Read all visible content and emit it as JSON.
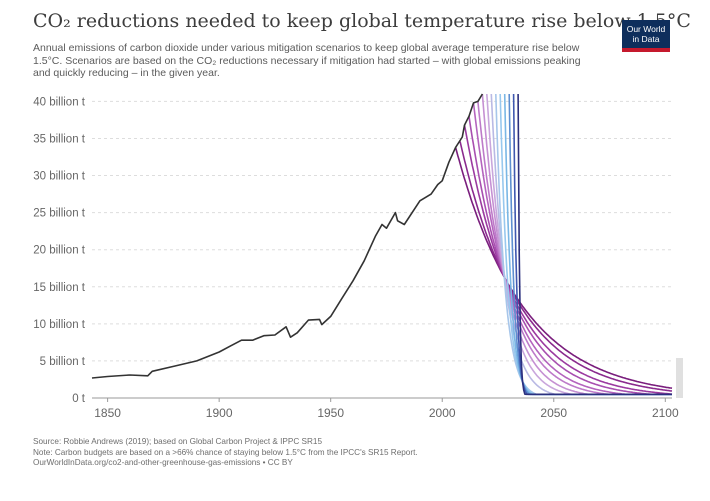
{
  "header": {
    "title": "CO₂ reductions needed to keep global temperature rise below 1.5°C",
    "subtitle": "Annual emissions of carbon dioxide under various mitigation scenarios to keep global average temperature rise below 1.5°C. Scenarios are based on the CO₂ reductions necessary if mitigation had started – with global emissions peaking and quickly reducing – in the given year."
  },
  "logo": {
    "line1": "Our World",
    "line2": "in Data",
    "bg_color": "#0e2e5c",
    "accent_color": "#c5192d"
  },
  "footer": {
    "source": "Source: Robbie Andrews (2019); based on Global Carbon Project & IPPC SR15",
    "note": "Note: Carbon budgets are based on a >66% chance of staying below 1.5°C from the IPCC's SR15 Report.",
    "url": "OurWorldInData.org/co2-and-other-greenhouse-gas-emissions • CC BY"
  },
  "chart_data": {
    "type": "line",
    "xlim": [
      1843,
      2103
    ],
    "ylim": [
      0,
      41
    ],
    "x_ticks": [
      1850,
      1900,
      1950,
      2000,
      2050,
      2100
    ],
    "x_tick_labels": [
      "1850",
      "1900",
      "1950",
      "2000",
      "2050",
      "2100"
    ],
    "y_ticks": [
      0,
      5,
      10,
      15,
      20,
      25,
      30,
      35,
      40
    ],
    "y_tick_labels": [
      "0 t",
      "5 billion t",
      "10 billion t",
      "15 billion t",
      "20 billion t",
      "25 billion t",
      "30 billion t",
      "35 billion t",
      "40 billion t"
    ],
    "grid": "horizontal-dashed",
    "historical": {
      "color": "#333333",
      "x": [
        1843,
        1850,
        1860,
        1868,
        1870,
        1880,
        1890,
        1900,
        1905,
        1910,
        1915,
        1920,
        1925,
        1930,
        1932,
        1935,
        1940,
        1945,
        1946,
        1950,
        1955,
        1960,
        1965,
        1970,
        1973,
        1975,
        1979,
        1980,
        1983,
        1990,
        1995,
        1998,
        2000,
        2003,
        2006,
        2009,
        2010,
        2012,
        2014,
        2016,
        2018
      ],
      "y": [
        2.7,
        2.9,
        3.1,
        3.0,
        3.6,
        4.3,
        5.0,
        6.2,
        7.0,
        7.8,
        7.8,
        8.4,
        8.5,
        9.6,
        8.2,
        8.8,
        10.5,
        10.6,
        9.9,
        11.0,
        13.4,
        15.8,
        18.5,
        21.8,
        23.4,
        22.9,
        25.0,
        23.9,
        23.4,
        26.6,
        27.5,
        28.8,
        29.3,
        31.8,
        33.8,
        35.2,
        36.8,
        38.0,
        39.8,
        40.0,
        41.0
      ]
    },
    "scenarios": {
      "comment_free": true,
      "start_years": [
        2006,
        2008,
        2010,
        2012,
        2014,
        2016,
        2018,
        2020,
        2022,
        2024,
        2026,
        2028,
        2030,
        2032,
        2034
      ],
      "start_values": [
        33.8,
        34.6,
        36.8,
        38.0,
        39.8,
        40.0,
        41.0,
        41.0,
        41.0,
        41.0,
        41.0,
        41.0,
        41.0,
        41.0,
        41.0
      ],
      "end_value": 0.5,
      "end_year": 2103,
      "colors": [
        "#7a1e7d",
        "#8a2a8e",
        "#9b3aa0",
        "#a84fb0",
        "#b464be",
        "#bd7ac9",
        "#c590d3",
        "#c9a6dc",
        "#b9b9e4",
        "#a7c6ea",
        "#98c8ee",
        "#7ab7e5",
        "#5e8fd0",
        "#3f58b0",
        "#2b2f7d"
      ]
    }
  }
}
